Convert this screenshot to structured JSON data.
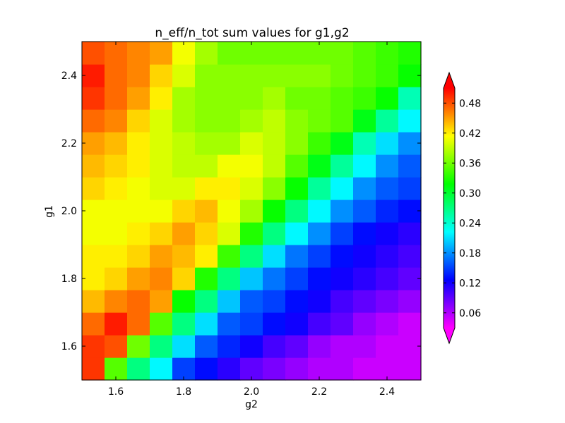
{
  "chart_data": {
    "type": "heatmap",
    "title": "n_eff/n_tot sum values for g1,g2",
    "xlabel": "g2",
    "ylabel": "g1",
    "x_range": [
      1.5,
      2.5
    ],
    "y_range": [
      1.5,
      2.5
    ],
    "x_ticks": [
      "1.6",
      "1.8",
      "2.0",
      "2.2",
      "2.4"
    ],
    "x_tick_values": [
      1.6,
      1.8,
      2.0,
      2.2,
      2.4
    ],
    "y_ticks": [
      "1.6",
      "1.8",
      "2.0",
      "2.2",
      "2.4"
    ],
    "y_tick_values": [
      1.6,
      1.8,
      2.0,
      2.2,
      2.4
    ],
    "colormap": "gist_rainbow_r",
    "colorbar": {
      "vmin": 0.03,
      "vmax": 0.51,
      "ticks": [
        "0.06",
        "0.12",
        "0.18",
        "0.24",
        "0.30",
        "0.36",
        "0.42",
        "0.48"
      ],
      "tick_values": [
        0.06,
        0.12,
        0.18,
        0.24,
        0.3,
        0.36,
        0.42,
        0.48
      ],
      "extend": "both"
    },
    "grid": false,
    "n_rows": 15,
    "n_cols": 15,
    "rows_order": "bottom-to-top (g1 = 1.50 .. 2.50)",
    "values": [
      [
        0.49,
        0.35,
        0.27,
        0.22,
        0.15,
        0.13,
        0.11,
        0.09,
        0.08,
        0.07,
        0.06,
        0.06,
        0.05,
        0.05,
        0.05
      ],
      [
        0.49,
        0.48,
        0.36,
        0.27,
        0.21,
        0.16,
        0.14,
        0.12,
        0.1,
        0.09,
        0.07,
        0.06,
        0.06,
        0.05,
        0.05
      ],
      [
        0.47,
        0.5,
        0.47,
        0.35,
        0.27,
        0.21,
        0.16,
        0.15,
        0.13,
        0.12,
        0.1,
        0.09,
        0.07,
        0.06,
        0.05
      ],
      [
        0.44,
        0.46,
        0.47,
        0.45,
        0.32,
        0.27,
        0.2,
        0.16,
        0.15,
        0.13,
        0.12,
        0.1,
        0.09,
        0.08,
        0.07
      ],
      [
        0.42,
        0.43,
        0.45,
        0.46,
        0.43,
        0.33,
        0.27,
        0.2,
        0.17,
        0.15,
        0.13,
        0.12,
        0.11,
        0.1,
        0.09
      ],
      [
        0.42,
        0.42,
        0.43,
        0.45,
        0.44,
        0.42,
        0.34,
        0.27,
        0.21,
        0.17,
        0.15,
        0.13,
        0.12,
        0.11,
        0.1
      ],
      [
        0.41,
        0.41,
        0.42,
        0.43,
        0.45,
        0.43,
        0.4,
        0.33,
        0.27,
        0.22,
        0.18,
        0.15,
        0.13,
        0.12,
        0.11
      ],
      [
        0.41,
        0.41,
        0.41,
        0.41,
        0.43,
        0.44,
        0.41,
        0.38,
        0.32,
        0.27,
        0.22,
        0.18,
        0.16,
        0.14,
        0.13
      ],
      [
        0.43,
        0.42,
        0.41,
        0.4,
        0.4,
        0.42,
        0.42,
        0.4,
        0.37,
        0.32,
        0.26,
        0.22,
        0.18,
        0.16,
        0.15
      ],
      [
        0.44,
        0.43,
        0.42,
        0.4,
        0.39,
        0.39,
        0.41,
        0.41,
        0.39,
        0.35,
        0.31,
        0.26,
        0.22,
        0.18,
        0.16
      ],
      [
        0.45,
        0.44,
        0.42,
        0.4,
        0.39,
        0.38,
        0.38,
        0.4,
        0.39,
        0.37,
        0.34,
        0.31,
        0.25,
        0.21,
        0.18
      ],
      [
        0.47,
        0.46,
        0.43,
        0.4,
        0.38,
        0.37,
        0.37,
        0.38,
        0.39,
        0.37,
        0.36,
        0.35,
        0.31,
        0.26,
        0.22
      ],
      [
        0.49,
        0.47,
        0.45,
        0.42,
        0.38,
        0.37,
        0.37,
        0.37,
        0.38,
        0.36,
        0.36,
        0.35,
        0.34,
        0.32,
        0.25
      ],
      [
        0.5,
        0.47,
        0.46,
        0.43,
        0.4,
        0.37,
        0.37,
        0.37,
        0.37,
        0.37,
        0.37,
        0.36,
        0.35,
        0.34,
        0.32
      ],
      [
        0.48,
        0.47,
        0.46,
        0.45,
        0.41,
        0.38,
        0.36,
        0.36,
        0.36,
        0.36,
        0.36,
        0.36,
        0.35,
        0.34,
        0.33
      ]
    ]
  }
}
